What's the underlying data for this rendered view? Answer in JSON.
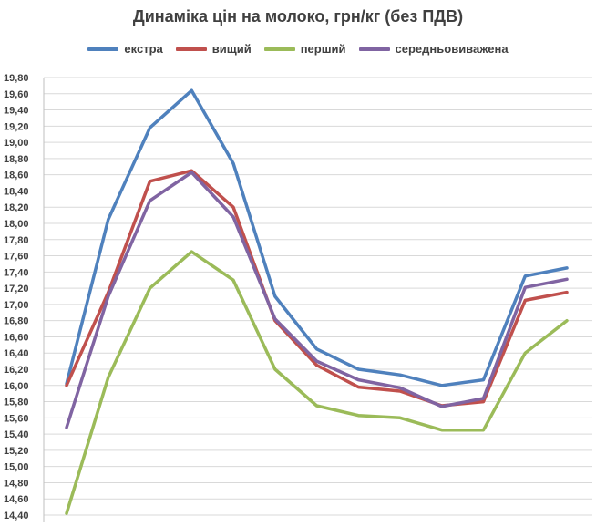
{
  "chart_data": {
    "type": "line",
    "title": "Динаміка цін на молоко, грн/кг (без ПДВ)",
    "xlabel": "",
    "ylabel": "",
    "ylim": [
      14.4,
      19.8
    ],
    "yticks": [
      "14,40",
      "14,60",
      "14,80",
      "15,00",
      "15,20",
      "15,40",
      "15,60",
      "15,80",
      "16,00",
      "16,20",
      "16,40",
      "16,60",
      "16,80",
      "17,00",
      "17,20",
      "17,40",
      "17,60",
      "17,80",
      "18,00",
      "18,20",
      "18,40",
      "18,60",
      "18,80",
      "19,00",
      "19,20",
      "19,40",
      "19,60",
      "19,80"
    ],
    "grid": true,
    "legend_position": "top",
    "x": [
      1,
      2,
      3,
      4,
      5,
      6,
      7,
      8,
      9,
      10,
      11,
      12,
      13
    ],
    "series": [
      {
        "name": "екстра",
        "color": "#4F81BD",
        "values": [
          16.02,
          18.05,
          19.18,
          19.64,
          18.74,
          17.1,
          16.45,
          16.2,
          16.13,
          16.0,
          16.07,
          17.35,
          17.45
        ]
      },
      {
        "name": "вищий",
        "color": "#C0504D",
        "values": [
          16.0,
          17.15,
          18.52,
          18.65,
          18.2,
          16.8,
          16.25,
          15.98,
          15.93,
          15.75,
          15.8,
          17.05,
          17.15
        ]
      },
      {
        "name": "перший",
        "color": "#9BBB59",
        "values": [
          14.42,
          16.1,
          17.2,
          17.65,
          17.3,
          16.2,
          15.75,
          15.63,
          15.6,
          15.45,
          15.45,
          16.4,
          16.8
        ]
      },
      {
        "name": "середньовиважена",
        "color": "#8064A2",
        "values": [
          15.48,
          17.1,
          18.28,
          18.63,
          18.08,
          16.82,
          16.3,
          16.07,
          15.97,
          15.74,
          15.84,
          17.21,
          17.31
        ]
      }
    ]
  }
}
